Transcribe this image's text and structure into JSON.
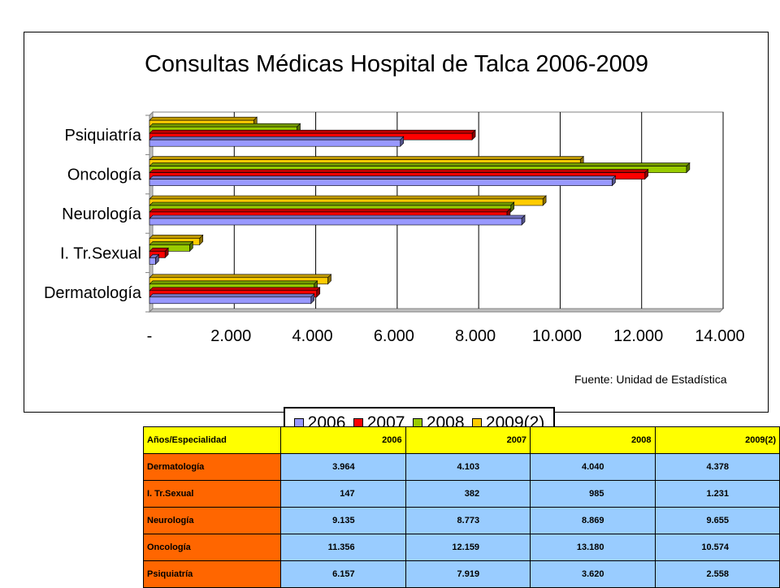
{
  "chart_data": {
    "type": "bar",
    "orientation": "horizontal",
    "title": "Consultas Médicas Hospital de Talca 2006-2009",
    "categories": [
      "Psiquiatría",
      "Oncología",
      "Neurología",
      "I. Tr.Sexual",
      "Dermatología"
    ],
    "series": [
      {
        "name": "2006",
        "color": "#9999ff",
        "values": [
          6157,
          11356,
          9135,
          147,
          3964
        ]
      },
      {
        "name": "2007",
        "color": "#ff0000",
        "values": [
          7919,
          12159,
          8773,
          382,
          4103
        ]
      },
      {
        "name": "2008",
        "color": "#99cc00",
        "values": [
          3620,
          13180,
          8869,
          985,
          4040
        ]
      },
      {
        "name": "2009(2)",
        "color": "#ffcc00",
        "values": [
          2558,
          10574,
          9655,
          1231,
          4378
        ]
      }
    ],
    "xlim": [
      0,
      14000
    ],
    "xticks": [
      "-",
      "2.000",
      "4.000",
      "6.000",
      "8.000",
      "10.000",
      "12.000",
      "14.000"
    ],
    "grid": true,
    "legend_position": "bottom"
  },
  "source_note": "Fuente: Unidad de Estadística",
  "table": {
    "header_label": "Años/Especialidad",
    "years": [
      "2006",
      "2007",
      "2008",
      "2009(2)"
    ],
    "rows": [
      {
        "label": "Dermatología",
        "cells": [
          "3.964",
          "4.103",
          "4.040",
          "4.378"
        ]
      },
      {
        "label": "I. Tr.Sexual",
        "cells": [
          "147",
          "382",
          "985",
          "1.231"
        ]
      },
      {
        "label": "Neurología",
        "cells": [
          "9.135",
          "8.773",
          "8.869",
          "9.655"
        ]
      },
      {
        "label": "Oncología",
        "cells": [
          "11.356",
          "12.159",
          "13.180",
          "10.574"
        ]
      },
      {
        "label": "Psiquiatría",
        "cells": [
          "6.157",
          "7.919",
          "3.620",
          "2.558"
        ]
      }
    ]
  }
}
